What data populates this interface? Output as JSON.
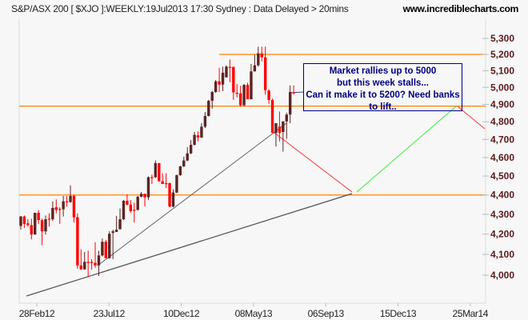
{
  "header": {
    "title": "S&P/ASX 200 [ $XJO ]:WEEKLY:19Jul2013 17:30 Sydney : Data Delayed > 20mins",
    "site": "www.incrediblecharts.com"
  },
  "chart_data": {
    "type": "candlestick",
    "y_scale": "log",
    "ylim": [
      3980,
      5300
    ],
    "y_ticks": [
      "5,300",
      "5,200",
      "5,100",
      "5,000",
      "4,900",
      "4,800",
      "4,700",
      "4,600",
      "4,500",
      "4,400",
      "4,300",
      "4,200",
      "4,100",
      "4,000"
    ],
    "y_tick_values": [
      5300,
      5200,
      5100,
      5000,
      4900,
      4800,
      4700,
      4600,
      4500,
      4400,
      4300,
      4200,
      4100,
      4000
    ],
    "x_ticks": [
      "28Feb12",
      "23Jul12",
      "10Dec12",
      "08May13",
      "06Sep13",
      "15Dec13",
      "25Mar14"
    ],
    "grid": false,
    "colors": {
      "up": "#5c2424",
      "down": "#ff0000",
      "level": "#ff8000",
      "trendline": "#555555",
      "projection_down": "#ff3030",
      "projection_up": "#33ee33",
      "note": "#000080"
    },
    "candles": [
      [
        4241,
        4292,
        4222,
        4289
      ],
      [
        4289,
        4294,
        4231,
        4251
      ],
      [
        4254,
        4275,
        4238,
        4246
      ],
      [
        4245,
        4278,
        4174,
        4198
      ],
      [
        4198,
        4308,
        4198,
        4308
      ],
      [
        4308,
        4322,
        4251,
        4271
      ],
      [
        4270,
        4278,
        4145,
        4214
      ],
      [
        4214,
        4294,
        4198,
        4275
      ],
      [
        4278,
        4305,
        4238,
        4273
      ],
      [
        4275,
        4367,
        4265,
        4333
      ],
      [
        4336,
        4377,
        4305,
        4322
      ],
      [
        4327,
        4336,
        4251,
        4324
      ],
      [
        4326,
        4395,
        4289,
        4367
      ],
      [
        4367,
        4395,
        4340,
        4364
      ],
      [
        4363,
        4451,
        4360,
        4395
      ],
      [
        4395,
        4402,
        4258,
        4285
      ],
      [
        4285,
        4305,
        4031,
        4047
      ],
      [
        4047,
        4125,
        4026,
        4028
      ],
      [
        4028,
        4112,
        4026,
        4064
      ],
      [
        4064,
        4118,
        3990,
        4059
      ],
      [
        4064,
        4077,
        4026,
        4059
      ],
      [
        4059,
        4160,
        4035,
        4047
      ],
      [
        4047,
        4118,
        3996,
        4095
      ],
      [
        4095,
        4178,
        4090,
        4162
      ],
      [
        4162,
        4171,
        4082,
        4082
      ],
      [
        4082,
        4214,
        4079,
        4202
      ],
      [
        4206,
        4222,
        4077,
        4214
      ],
      [
        4211,
        4292,
        4211,
        4222
      ],
      [
        4225,
        4330,
        4222,
        4275
      ],
      [
        4275,
        4374,
        4271,
        4370
      ],
      [
        4370,
        4404,
        4346,
        4350
      ],
      [
        4350,
        4374,
        4308,
        4316
      ],
      [
        4323,
        4360,
        4258,
        4319
      ],
      [
        4323,
        4395,
        4319,
        4391
      ],
      [
        4391,
        4416,
        4388,
        4406
      ],
      [
        4406,
        4406,
        4340,
        4388
      ],
      [
        4388,
        4498,
        4374,
        4494
      ],
      [
        4494,
        4508,
        4458,
        4490
      ],
      [
        4494,
        4584,
        4490,
        4570
      ],
      [
        4570,
        4570,
        4472,
        4472
      ],
      [
        4472,
        4515,
        4458,
        4458
      ],
      [
        4462,
        4515,
        4437,
        4458
      ],
      [
        4462,
        4465,
        4336,
        4340
      ],
      [
        4340,
        4430,
        4336,
        4413
      ],
      [
        4413,
        4508,
        4409,
        4505
      ],
      [
        4505,
        4555,
        4501,
        4552
      ],
      [
        4552,
        4605,
        4549,
        4584
      ],
      [
        4584,
        4657,
        4580,
        4623
      ],
      [
        4623,
        4697,
        4619,
        4670
      ],
      [
        4670,
        4742,
        4667,
        4726
      ],
      [
        4723,
        4746,
        4689,
        4711
      ],
      [
        4711,
        4792,
        4708,
        4772
      ],
      [
        4772,
        4856,
        4764,
        4833
      ],
      [
        4833,
        4926,
        4830,
        4921
      ],
      [
        4921,
        4978,
        4875,
        4973
      ],
      [
        4973,
        5044,
        4968,
        5036
      ],
      [
        5036,
        5117,
        4973,
        5017
      ],
      [
        5017,
        5125,
        4978,
        5088
      ],
      [
        5060,
        5133,
        5060,
        5125
      ],
      [
        5123,
        5169,
        5031,
        5119
      ],
      [
        5123,
        5125,
        4926,
        4971
      ],
      [
        4968,
        5020,
        4941,
        4965
      ],
      [
        4965,
        5009,
        4887,
        4895
      ],
      [
        4895,
        5020,
        4890,
        5015
      ],
      [
        5015,
        5028,
        4930,
        4930
      ],
      [
        4930,
        5141,
        4930,
        5096
      ],
      [
        5096,
        5198,
        5096,
        5133
      ],
      [
        5133,
        5248,
        5125,
        5206
      ],
      [
        5206,
        5248,
        5157,
        5182
      ],
      [
        5182,
        5248,
        4957,
        4984
      ],
      [
        4981,
        4989,
        4903,
        4926
      ],
      [
        4926,
        4934,
        4737,
        4737
      ],
      [
        4737,
        4792,
        4660,
        4792
      ],
      [
        4772,
        4859,
        4689,
        4737
      ],
      [
        4742,
        4802,
        4633,
        4802
      ],
      [
        4802,
        4852,
        4704,
        4841
      ],
      [
        4841,
        5012,
        4792,
        4973
      ],
      [
        4971,
        5012,
        4957,
        4965
      ]
    ],
    "candle_fields": [
      "open",
      "high",
      "low",
      "close"
    ],
    "levels": [
      5200,
      4890,
      4400
    ],
    "annotation": {
      "lines": [
        "Market rallies up to 5000",
        "but this week stalls...",
        "Can it make it to 5200? Need banks",
        "to lift.."
      ]
    }
  }
}
